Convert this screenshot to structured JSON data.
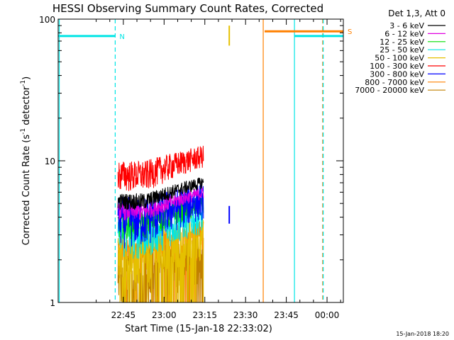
{
  "chart_data": {
    "type": "line",
    "title": "HESSI Observing Summary Count Rates, Corrected",
    "xlabel": "Start Time (15-Jan-18 22:33:02)",
    "ylabel_main": "Corrected Count Rate (s",
    "ylabel_exp1": "-1",
    "ylabel_mid": " detector",
    "ylabel_exp2": "-1",
    "ylabel_end": ")",
    "yscale": "log",
    "ylim": [
      1,
      100
    ],
    "xlim_minutes": [
      -12,
      93
    ],
    "x_ticks": [
      {
        "label": "22:45",
        "minute": 12
      },
      {
        "label": "23:00",
        "minute": 27
      },
      {
        "label": "23:15",
        "minute": 42
      },
      {
        "label": "23:30",
        "minute": 57
      },
      {
        "label": "23:45",
        "minute": 72
      },
      {
        "label": "00:00",
        "minute": 87
      }
    ],
    "y_ticks": [
      {
        "label": "1",
        "value": 1
      },
      {
        "label": "10",
        "value": 10
      },
      {
        "label": "100",
        "value": 100
      }
    ],
    "legend_title": "Det 1,3, Att 0",
    "series": [
      {
        "name": "3 - 6 keV",
        "color": "#000000",
        "base": 5.2,
        "jitter": 0.7,
        "hold": false
      },
      {
        "name": "6 - 12 keV",
        "color": "#e000e0",
        "base": 4.4,
        "jitter": 0.6,
        "hold": false
      },
      {
        "name": "12 - 25 keV",
        "color": "#00dd00",
        "base": 3.6,
        "jitter": 0.8,
        "hold": false
      },
      {
        "name": "25 - 50 keV",
        "color": "#00e5e5",
        "base": 3.0,
        "jitter": 1.0,
        "hold": false
      },
      {
        "name": "50 - 100 keV",
        "color": "#e5c000",
        "base": 2.2,
        "jitter": 1.0,
        "hold": false
      },
      {
        "name": "100 - 300 keV",
        "color": "#ff0000",
        "base": 8.0,
        "jitter": 2.0,
        "hold": false
      },
      {
        "name": "300 - 800 keV",
        "color": "#0000ff",
        "base": 4.0,
        "jitter": 1.6,
        "hold": false
      },
      {
        "name": "800 - 7000 keV",
        "color": "#ff8000",
        "base": 2.4,
        "jitter": 0.6,
        "hold": false
      },
      {
        "name": "7000 - 20000 keV",
        "color": "#c08000",
        "base": 1.6,
        "jitter": 0.8,
        "hold": false
      }
    ],
    "data_window_minutes": [
      10,
      41.5
    ],
    "flags": [
      {
        "label": "N",
        "color": "#00e5e5",
        "from": -12,
        "to": 9,
        "value": 76
      },
      {
        "label": "S",
        "color": "#ff8000",
        "from": 64,
        "to": 93,
        "value": 82
      },
      {
        "label": "",
        "color": "#00e5e5",
        "from": 75,
        "to": 93,
        "value": 76
      }
    ],
    "solid_verticals": [
      {
        "minute": -11.6,
        "color": "#00e5e5"
      },
      {
        "minute": 63.5,
        "color": "#ff8000"
      },
      {
        "minute": 75,
        "color": "#00e5e5"
      }
    ],
    "dashed_verticals": [
      {
        "minute": 9,
        "color": "#00e5e5"
      },
      {
        "minute": 85.4,
        "color": "#ff8000"
      },
      {
        "minute": 85.6,
        "color": "#00e5e5"
      }
    ],
    "spikes": [
      {
        "minute": 51,
        "from": 65,
        "to": 90,
        "color": "#e5c000"
      },
      {
        "minute": 51,
        "from": 3.6,
        "to": 4.8,
        "color": "#0000ff"
      }
    ],
    "timestamp": "15-Jan-2018 18:20"
  }
}
